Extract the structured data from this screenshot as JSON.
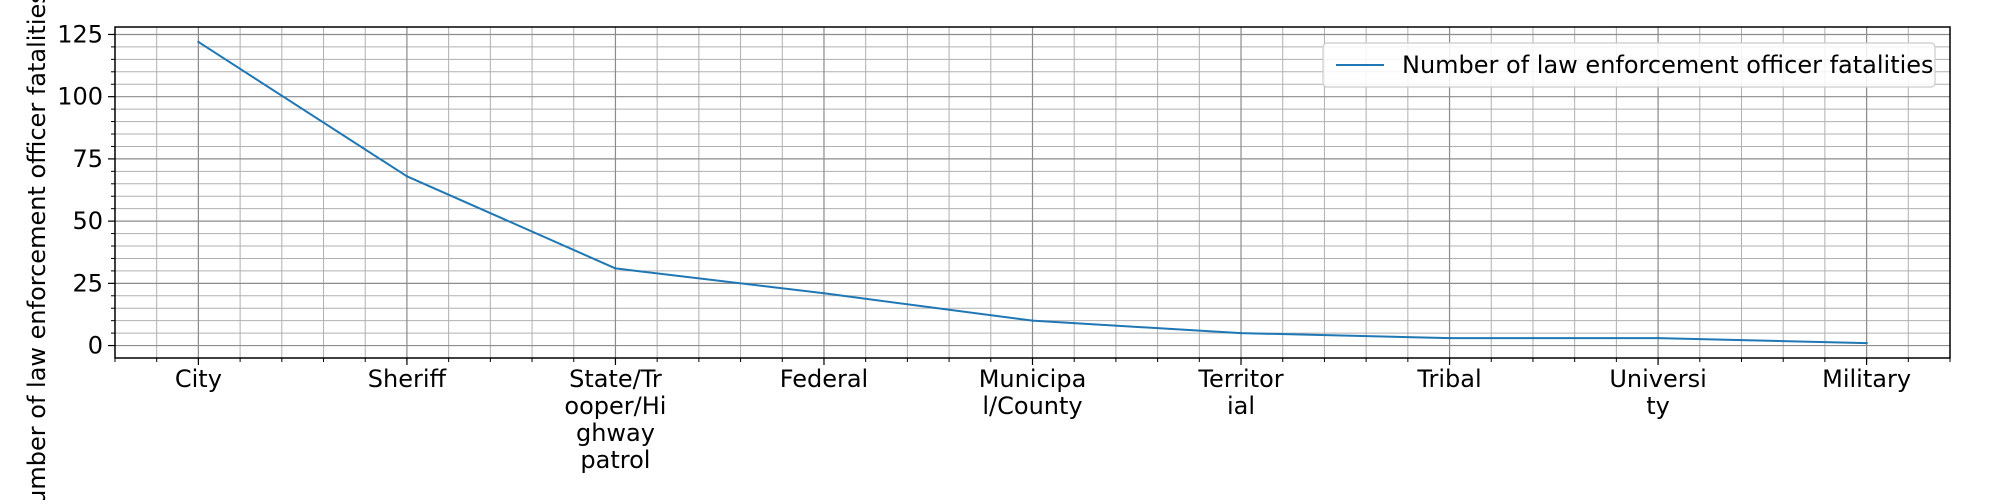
{
  "chart_data": {
    "type": "line",
    "title": "",
    "xlabel": "",
    "ylabel": "Number of law enforcement officer fatalities",
    "categories": [
      "City",
      "Sheriff",
      "State/Trooper/Highway patrol",
      "Federal",
      "Municipal/County",
      "Territorial",
      "Tribal",
      "University",
      "Military"
    ],
    "category_tick_labels": [
      [
        "City"
      ],
      [
        "Sheriff"
      ],
      [
        "State/Tr",
        "ooper/Hi",
        "ghway",
        "patrol"
      ],
      [
        "Federal"
      ],
      [
        "Municipa",
        "l/County"
      ],
      [
        "Territor",
        "ial"
      ],
      [
        "Tribal"
      ],
      [
        "Universi",
        "ty"
      ],
      [
        "Military"
      ]
    ],
    "series": [
      {
        "name": "Number of law enforcement officer fatalities",
        "values": [
          122,
          68,
          31,
          21,
          10,
          5,
          3,
          3,
          1
        ],
        "color": "#1f77b4"
      }
    ],
    "ylim": [
      -5,
      128
    ],
    "yticks": [
      0,
      25,
      50,
      75,
      100,
      125
    ],
    "grid": true,
    "minor_grid": true,
    "legend_position": "top-right"
  }
}
